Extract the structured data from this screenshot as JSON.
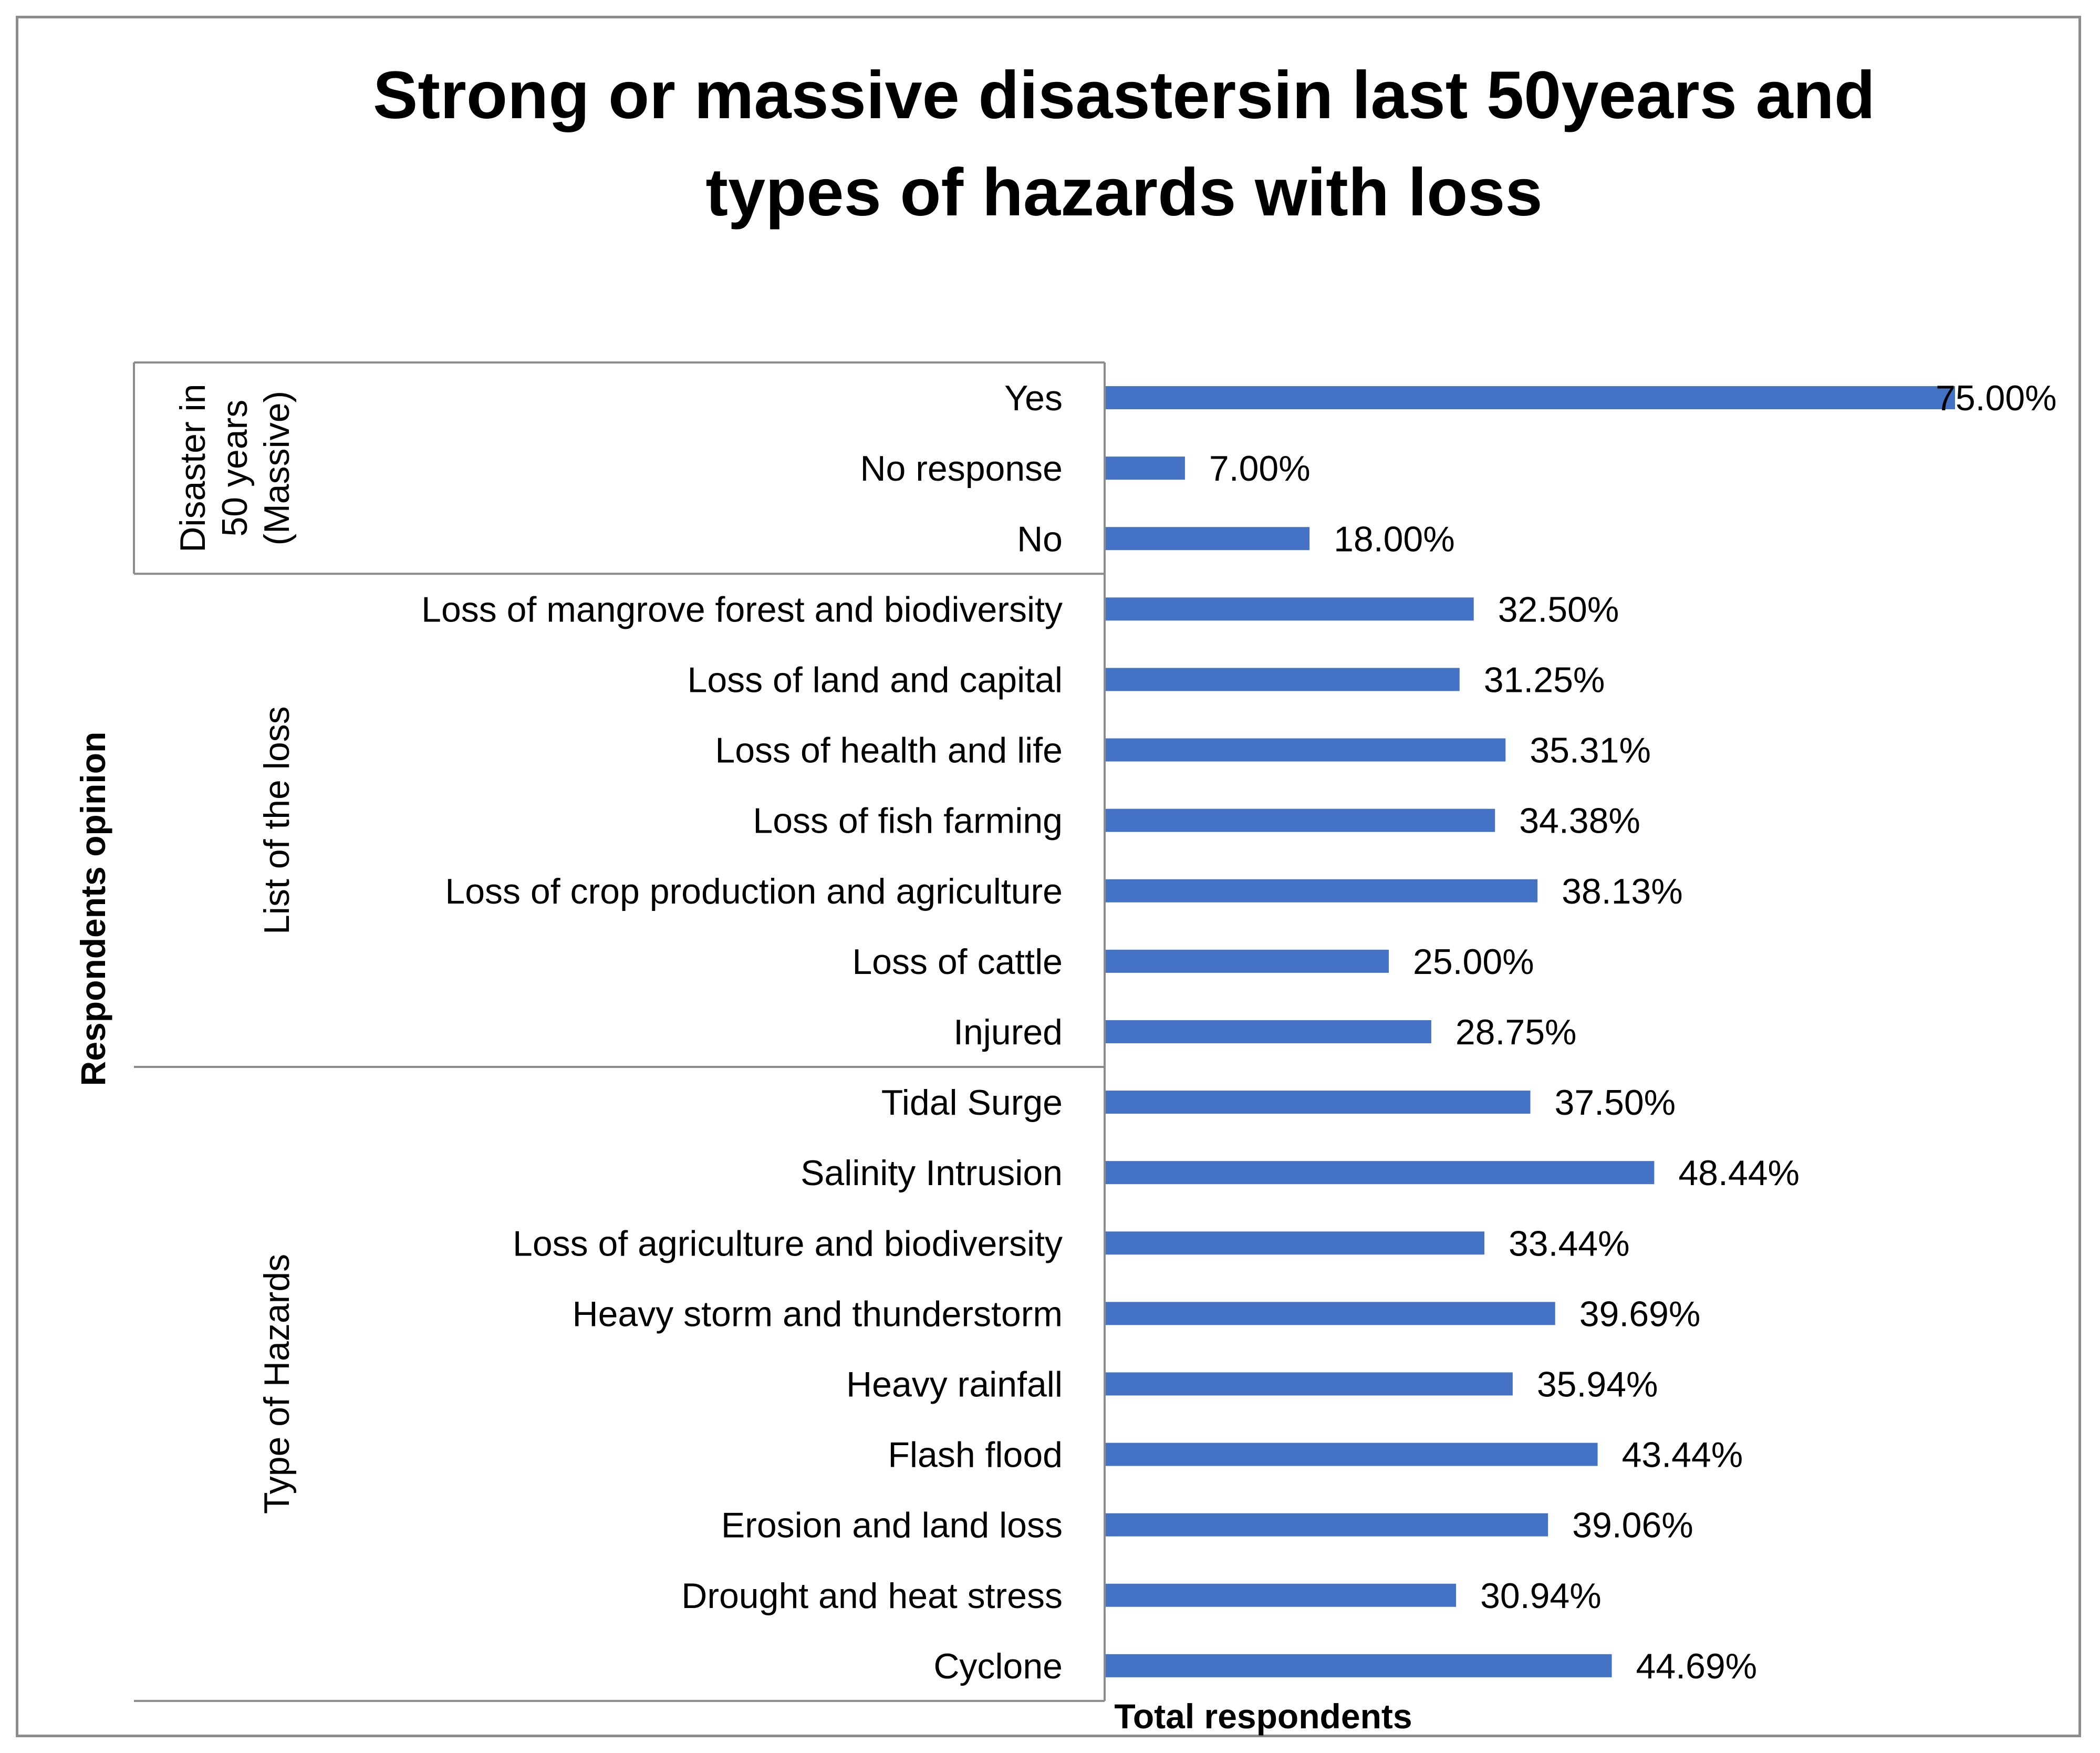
{
  "chart_data": {
    "type": "bar",
    "orientation": "horizontal",
    "title_lines": [
      "Strong or massive disastersin last 50years and",
      "types of hazards with loss"
    ],
    "xlabel": "Total respondents",
    "ylabel": "Respondents opinion",
    "xlim": [
      0,
      75
    ],
    "grid": false,
    "legend": "none",
    "bar_color": "#4472c4",
    "groups": [
      {
        "name": "Disaster in 50 years (Massive)",
        "name_lines": [
          "Disaster in",
          "50 years",
          "(Massive)"
        ],
        "categories": [
          "Yes",
          "No response",
          "No"
        ],
        "values": [
          75.0,
          7.0,
          18.0
        ],
        "labels": [
          "75.00%",
          "7.00%",
          "18.00%"
        ]
      },
      {
        "name": "List of the loss",
        "name_lines": [
          "List of the loss"
        ],
        "categories": [
          "Loss of mangrove forest and biodiversity",
          "Loss of land and capital",
          "Loss of health and life",
          "Loss of fish farming",
          "Loss of crop production and agriculture",
          "Loss of cattle",
          "Injured"
        ],
        "values": [
          32.5,
          31.25,
          35.31,
          34.38,
          38.13,
          25.0,
          28.75
        ],
        "labels": [
          "32.50%",
          "31.25%",
          "35.31%",
          "34.38%",
          "38.13%",
          "25.00%",
          "28.75%"
        ]
      },
      {
        "name": "Type of Hazards",
        "name_lines": [
          "Type of Hazards"
        ],
        "categories": [
          "Tidal Surge",
          "Salinity Intrusion",
          "Loss of agriculture and biodiversity",
          "Heavy storm and thunderstorm",
          "Heavy rainfall",
          "Flash flood",
          "Erosion and land loss",
          "Drought and heat stress",
          "Cyclone"
        ],
        "values": [
          37.5,
          48.44,
          33.44,
          39.69,
          35.94,
          43.44,
          39.06,
          30.94,
          44.69
        ],
        "labels": [
          "37.50%",
          "48.44%",
          "33.44%",
          "39.69%",
          "35.94%",
          "43.44%",
          "39.06%",
          "30.94%",
          "44.69%"
        ]
      }
    ]
  }
}
